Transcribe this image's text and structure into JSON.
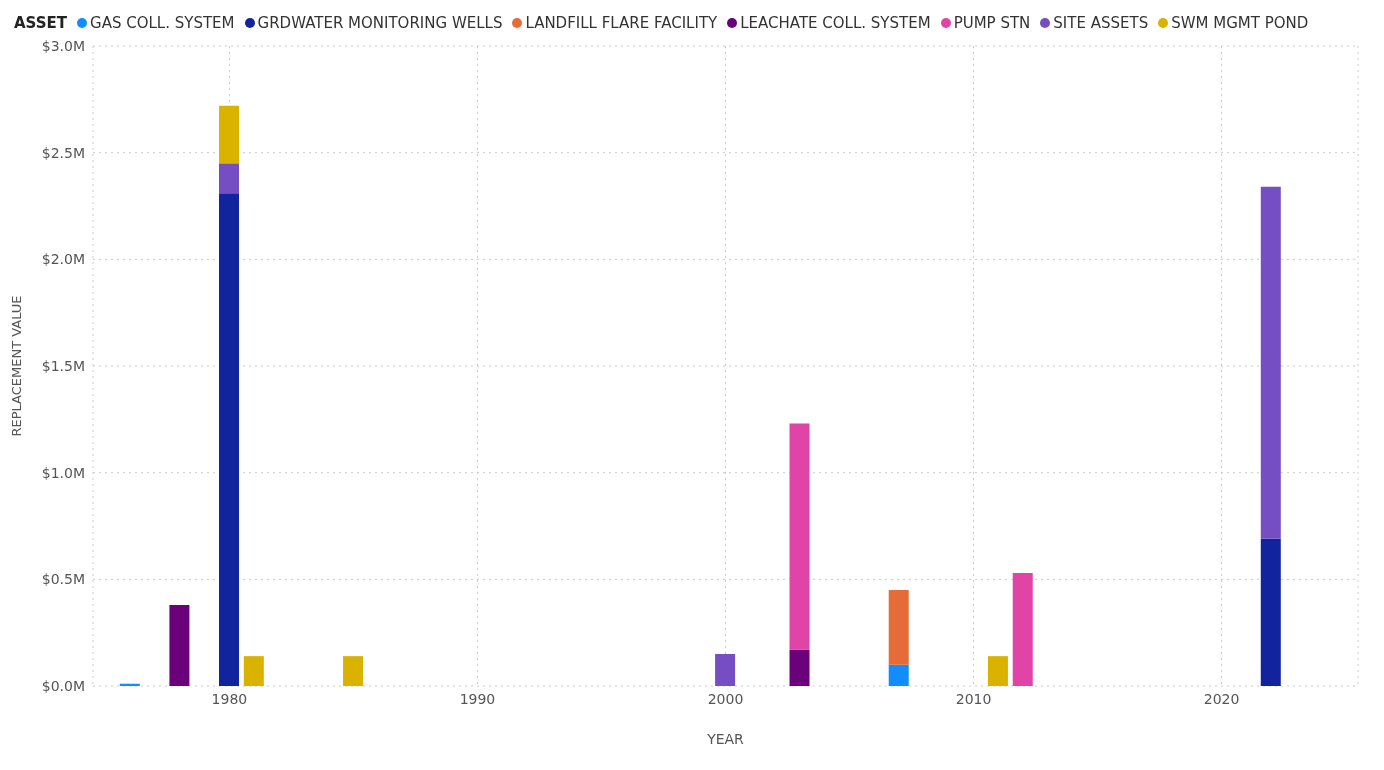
{
  "chart_data": {
    "type": "bar",
    "stacked": true,
    "xlabel": "YEAR",
    "ylabel": "REPLACEMENT VALUE",
    "legend_title": "ASSET",
    "legend": "top left",
    "grid": true,
    "x": [
      1976,
      1978,
      1980,
      1981,
      1985,
      2000,
      2003,
      2007,
      2011,
      2012,
      2022
    ],
    "series": [
      {
        "name": "GAS COLL. SYSTEM",
        "color": "#118dff",
        "values": [
          0.01,
          null,
          null,
          null,
          null,
          null,
          null,
          0.1,
          null,
          null,
          null
        ]
      },
      {
        "name": "GRDWATER MONITORING WELLS",
        "color": "#12239e",
        "values": [
          null,
          null,
          2.31,
          null,
          null,
          null,
          null,
          null,
          null,
          null,
          0.69
        ]
      },
      {
        "name": "LANDFILL FLARE FACILITY",
        "color": "#e66c37",
        "values": [
          null,
          null,
          null,
          null,
          null,
          null,
          null,
          0.35,
          null,
          null,
          null
        ]
      },
      {
        "name": "LEACHATE COLL. SYSTEM",
        "color": "#6b007b",
        "values": [
          null,
          0.38,
          null,
          null,
          null,
          null,
          0.17,
          null,
          null,
          null,
          null
        ]
      },
      {
        "name": "PUMP STN",
        "color": "#e044a7",
        "values": [
          null,
          null,
          null,
          null,
          null,
          null,
          1.06,
          null,
          null,
          0.53,
          null
        ]
      },
      {
        "name": "SITE ASSETS",
        "color": "#744ec2",
        "values": [
          null,
          null,
          0.14,
          null,
          null,
          0.15,
          null,
          null,
          null,
          null,
          1.65
        ]
      },
      {
        "name": "SWM MGMT POND",
        "color": "#d9b300",
        "values": [
          null,
          null,
          0.27,
          0.14,
          0.14,
          null,
          null,
          null,
          0.14,
          null,
          null
        ]
      }
    ],
    "xlim": [
      1974.5,
      2025.5
    ],
    "xticks": [
      1980,
      1990,
      2000,
      2010,
      2020
    ],
    "ylim": [
      0,
      3
    ],
    "yticks": [
      {
        "value": 0,
        "label": "$0.0M"
      },
      {
        "value": 0.5,
        "label": "$0.5M"
      },
      {
        "value": 1,
        "label": "$1.0M"
      },
      {
        "value": 1.5,
        "label": "$1.5M"
      },
      {
        "value": 2,
        "label": "$2.0M"
      },
      {
        "value": 2.5,
        "label": "$2.5M"
      },
      {
        "value": 3,
        "label": "$3.0M"
      }
    ]
  }
}
